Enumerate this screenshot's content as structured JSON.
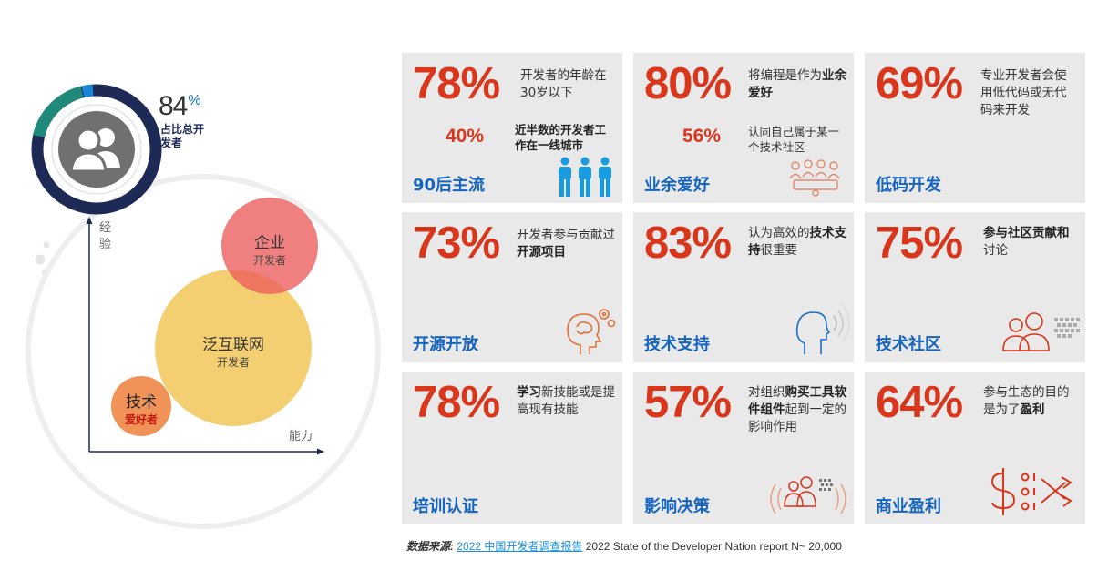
{
  "left": {
    "share_value": "84",
    "share_unit": "%",
    "share_label": "占比总开发者",
    "axis_y": "经验",
    "axis_x": "能力",
    "bubbles": {
      "enterprise": {
        "main": "企业",
        "sub": "开发者"
      },
      "internet": {
        "main": "泛互联网",
        "sub": "开发者"
      },
      "hobbyist": {
        "main": "技术",
        "sub": "爱好者"
      }
    }
  },
  "cards": {
    "c1": {
      "pct": "78%",
      "desc": "开发者的年龄在30岁以下",
      "sub_pct": "40%",
      "sub_desc": "近半数的开发者工作在一线城市",
      "title": "90后主流"
    },
    "c2": {
      "pct": "80%",
      "desc_pre": "将编程是作为",
      "desc_bold": "业余爱好",
      "sub_pct": "56%",
      "sub_desc": "认同自己属于某一个技术社区",
      "title": "业余爱好"
    },
    "c3": {
      "pct": "69%",
      "desc": "专业开发者会使用低代码或无代码来开发",
      "title": "低码开发"
    },
    "c4": {
      "pct": "73%",
      "desc_pre": "开发者参与贡献过",
      "desc_bold": "开源项目",
      "title": "开源开放"
    },
    "c5": {
      "pct": "83%",
      "desc_pre": "认为高效的",
      "desc_bold": "技术支持",
      "desc_post": "很重要",
      "title": "技术支持"
    },
    "c6": {
      "pct": "75%",
      "desc_bold": "参与社区贡献和",
      "desc_post": "讨论",
      "title": "技术社区"
    },
    "c7": {
      "pct": "78%",
      "desc_bold": "学习",
      "desc_post": "新技能或是提高现有技能",
      "title": "培训认证"
    },
    "c8": {
      "pct": "57%",
      "desc_pre": "对组织",
      "desc_bold": "购买工具软件组件",
      "desc_post": "起到一定的影响作用",
      "title": "影响决策"
    },
    "c9": {
      "pct": "64%",
      "desc_pre": "参与生态的目的是为了",
      "desc_bold": "盈利",
      "title": "商业盈利"
    }
  },
  "footer": {
    "source_label": "数据来源:",
    "link_text": "2022 中国开发者调查报告",
    "rest": "2022 State of the Developer Nation report N~ 20,000"
  },
  "colors": {
    "accent_red": "#d9361c",
    "title_blue": "#1565c0",
    "navy": "#1c2a55",
    "teal": "#1f8a7a"
  }
}
